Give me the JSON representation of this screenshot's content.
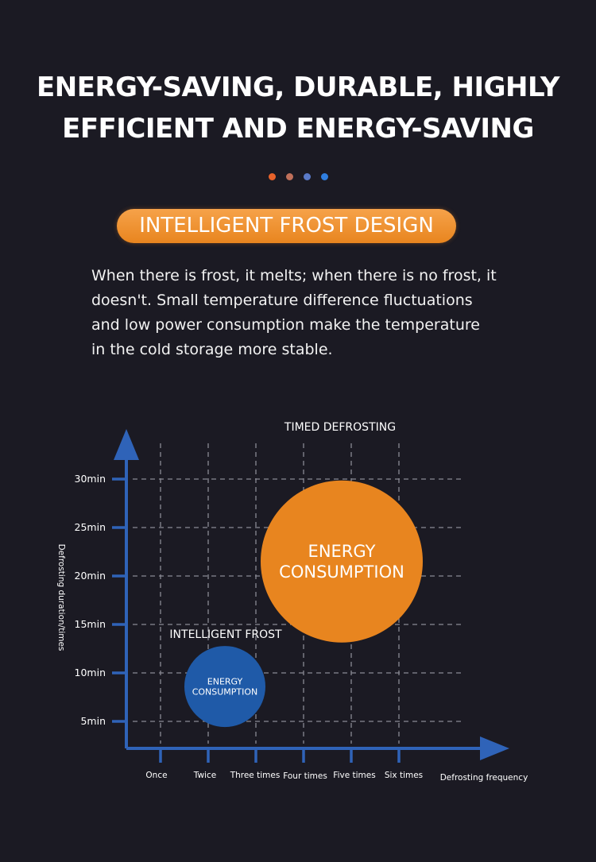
{
  "headline": {
    "line1": "ENERGY-SAVING, DURABLE, HIGHLY",
    "line2": "EFFICIENT AND ENERGY-SAVING"
  },
  "dots": [
    "#e8622a",
    "#c0705a",
    "#5a7ac8",
    "#2f7ee0"
  ],
  "pill": {
    "label": "INTELLIGENT FROST DESIGN"
  },
  "description": "When there is frost, it melts; when there is no frost, it doesn't. Small temperature difference fluctuations and low power consumption make the temperature in the cold storage more stable.",
  "colors": {
    "axis": "#2f63b8",
    "grid": "#8a8a94",
    "orange": "#e8851f",
    "blue": "#1f5aa8"
  },
  "chart_data": {
    "type": "scatter",
    "xlabel": "Defrosting frequency",
    "ylabel": "Defrosting duration/times",
    "categories": [
      "Once",
      "Twice",
      "Three times",
      "Four times",
      "Five times",
      "Six times"
    ],
    "yticks": [
      5,
      10,
      15,
      20,
      25,
      30
    ],
    "ytick_labels": [
      "5min",
      "10min",
      "15min",
      "20min",
      "25min",
      "30min"
    ],
    "grid": true,
    "series": [
      {
        "name": "TIMED DEFROSTING",
        "bubble_label": [
          "ENERGY",
          "CONSUMPTION"
        ],
        "x": 4.8,
        "y": 21.5,
        "size": 3.4,
        "color": "#e8851f"
      },
      {
        "name": "INTELLIGENT FROST",
        "bubble_label": [
          "ENERGY",
          "CONSUMPTION"
        ],
        "x": 2.35,
        "y": 8.6,
        "size": 1.7,
        "color": "#1f5aa8"
      }
    ]
  }
}
